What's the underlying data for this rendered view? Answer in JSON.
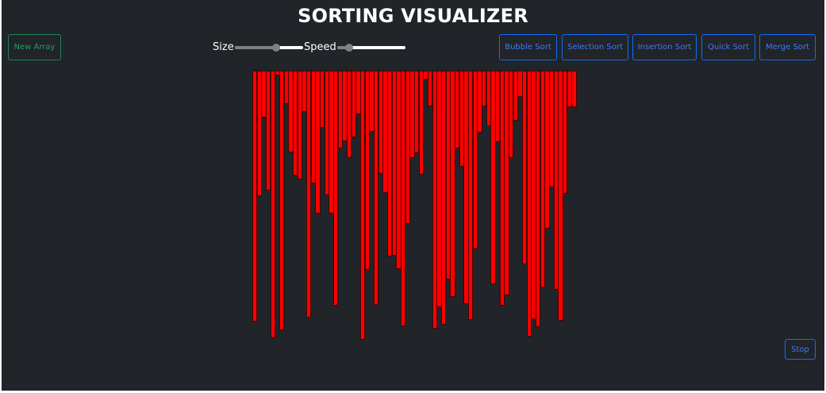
{
  "header": {
    "title": "SORTING VISUALIZER"
  },
  "controls": {
    "new_array_label": "New Array",
    "size_label": "Size",
    "speed_label": "Speed",
    "size_value": 0.6,
    "speed_value": 0.18,
    "stop_label": "Stop"
  },
  "algorithms": [
    {
      "label": "Bubble Sort"
    },
    {
      "label": "Selection Sort"
    },
    {
      "label": "Insertion Sort"
    },
    {
      "label": "Quick Sort"
    },
    {
      "label": "Merge Sort"
    }
  ],
  "colors": {
    "background": "#212428",
    "bar": "#ff0000",
    "primary_button": "#0d6efd",
    "success_button": "#198754"
  },
  "chart_data": {
    "type": "bar",
    "orientation": "downward",
    "values": [
      316,
      158,
      59,
      151,
      337,
      6,
      327,
      42,
      103,
      132,
      137,
      52,
      311,
      142,
      180,
      72,
      157,
      180,
      296,
      98,
      89,
      110,
      84,
      55,
      339,
      251,
      77,
      295,
      130,
      154,
      234,
      233,
      250,
      322,
      193,
      110,
      104,
      131,
      11,
      45,
      325,
      298,
      320,
      263,
      285,
      98,
      121,
      294,
      314,
      225,
      78,
      45,
      70,
      269,
      90,
      296,
      283,
      110,
      63,
      33,
      244,
      335,
      313,
      323,
      273,
      199,
      147,
      276,
      315,
      155,
      46,
      46
    ]
  }
}
